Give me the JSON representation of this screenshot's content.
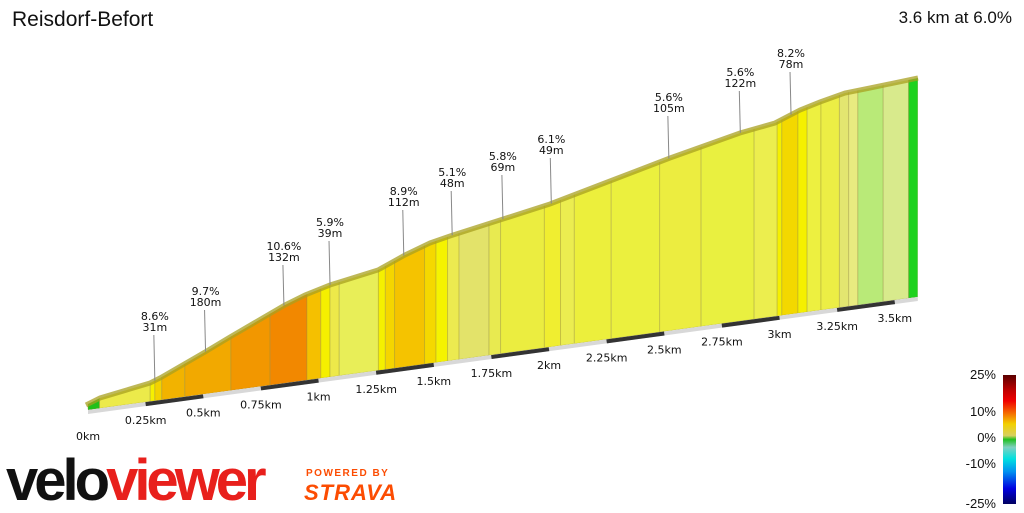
{
  "header": {
    "title": "Reisdorf-Befort",
    "summary": "3.6 km at 6.0%"
  },
  "chart_data": {
    "type": "area",
    "title": "Reisdorf-Befort",
    "xlabel": "",
    "ylabel": "",
    "xlim": [
      0,
      3.6
    ],
    "x_ticks": [
      "0km",
      "0.25km",
      "0.5km",
      "0.75km",
      "1km",
      "1.25km",
      "1.5km",
      "1.75km",
      "2km",
      "2.25km",
      "2.5km",
      "2.75km",
      "3km",
      "3.25km",
      "3.5km"
    ],
    "segments": [
      {
        "from": 0,
        "to": 0.05,
        "color": "#22c01a"
      },
      {
        "from": 0.05,
        "to": 0.27,
        "color": "#ecea4a"
      },
      {
        "from": 0.27,
        "to": 0.29,
        "color": "#f6f000"
      },
      {
        "from": 0.29,
        "to": 0.32,
        "color": "#f3d200"
      },
      {
        "from": 0.32,
        "to": 0.42,
        "color": "#f2b300"
      },
      {
        "from": 0.42,
        "to": 0.62,
        "color": "#f2a900"
      },
      {
        "from": 0.62,
        "to": 0.79,
        "color": "#f29700"
      },
      {
        "from": 0.79,
        "to": 0.95,
        "color": "#f28800"
      },
      {
        "from": 0.95,
        "to": 1.01,
        "color": "#f5c000"
      },
      {
        "from": 1.01,
        "to": 1.05,
        "color": "#f5ef00"
      },
      {
        "from": 1.05,
        "to": 1.09,
        "color": "#ede94a"
      },
      {
        "from": 1.09,
        "to": 1.26,
        "color": "#e8ee58"
      },
      {
        "from": 1.26,
        "to": 1.29,
        "color": "#f5f000"
      },
      {
        "from": 1.29,
        "to": 1.33,
        "color": "#f5d500"
      },
      {
        "from": 1.33,
        "to": 1.46,
        "color": "#f5c300"
      },
      {
        "from": 1.46,
        "to": 1.51,
        "color": "#f5d800"
      },
      {
        "from": 1.51,
        "to": 1.56,
        "color": "#f5f300"
      },
      {
        "from": 1.56,
        "to": 1.61,
        "color": "#ecea50"
      },
      {
        "from": 1.61,
        "to": 1.74,
        "color": "#e3e36a"
      },
      {
        "from": 1.74,
        "to": 1.79,
        "color": "#e8ea50"
      },
      {
        "from": 1.79,
        "to": 1.98,
        "color": "#ebed40"
      },
      {
        "from": 1.98,
        "to": 2.05,
        "color": "#f0ee30"
      },
      {
        "from": 2.05,
        "to": 2.11,
        "color": "#ebed50"
      },
      {
        "from": 2.11,
        "to": 2.27,
        "color": "#ecef3c"
      },
      {
        "from": 2.27,
        "to": 2.48,
        "color": "#ebf03e"
      },
      {
        "from": 2.48,
        "to": 2.66,
        "color": "#eced40"
      },
      {
        "from": 2.66,
        "to": 2.89,
        "color": "#e9f040"
      },
      {
        "from": 2.89,
        "to": 2.99,
        "color": "#ecee4e"
      },
      {
        "from": 2.99,
        "to": 3.01,
        "color": "#f5f000"
      },
      {
        "from": 3.01,
        "to": 3.08,
        "color": "#f3d800"
      },
      {
        "from": 3.08,
        "to": 3.12,
        "color": "#f5f000"
      },
      {
        "from": 3.12,
        "to": 3.18,
        "color": "#edf040"
      },
      {
        "from": 3.18,
        "to": 3.26,
        "color": "#ecee45"
      },
      {
        "from": 3.26,
        "to": 3.3,
        "color": "#e3e670"
      },
      {
        "from": 3.3,
        "to": 3.34,
        "color": "#e8eb80"
      },
      {
        "from": 3.34,
        "to": 3.45,
        "color": "#b9ea78"
      },
      {
        "from": 3.45,
        "to": 3.56,
        "color": "#d8ea8c"
      },
      {
        "from": 3.56,
        "to": 3.6,
        "color": "#1ed21e"
      }
    ],
    "annotations": [
      {
        "km": 0.29,
        "gradient": "8.6%",
        "length": "31m"
      },
      {
        "km": 0.51,
        "gradient": "9.7%",
        "length": "180m"
      },
      {
        "km": 0.85,
        "gradient": "10.6%",
        "length": "132m"
      },
      {
        "km": 1.05,
        "gradient": "5.9%",
        "length": "39m"
      },
      {
        "km": 1.37,
        "gradient": "8.9%",
        "length": "112m"
      },
      {
        "km": 1.58,
        "gradient": "5.1%",
        "length": "48m"
      },
      {
        "km": 1.8,
        "gradient": "5.8%",
        "length": "69m"
      },
      {
        "km": 2.01,
        "gradient": "6.1%",
        "length": "49m"
      },
      {
        "km": 2.52,
        "gradient": "5.6%",
        "length": "105m"
      },
      {
        "km": 2.83,
        "gradient": "5.6%",
        "length": "122m"
      },
      {
        "km": 3.05,
        "gradient": "8.2%",
        "length": "78m"
      }
    ],
    "legend": {
      "position": "bottom-right",
      "labels": [
        "25%",
        "10%",
        "0%",
        "-10%",
        "-25%"
      ],
      "colors": [
        "#5a0000",
        "#c00000",
        "#f00000",
        "#f57000",
        "#f2d000",
        "#d8d060",
        "#20c020",
        "#80d0c0",
        "#00e0e0",
        "#0090f0",
        "#0000e0",
        "#000060"
      ]
    }
  },
  "branding": {
    "velo": "velo",
    "viewer": "viewer",
    "powered_by": "POWERED BY",
    "strava": "STRAVA"
  }
}
